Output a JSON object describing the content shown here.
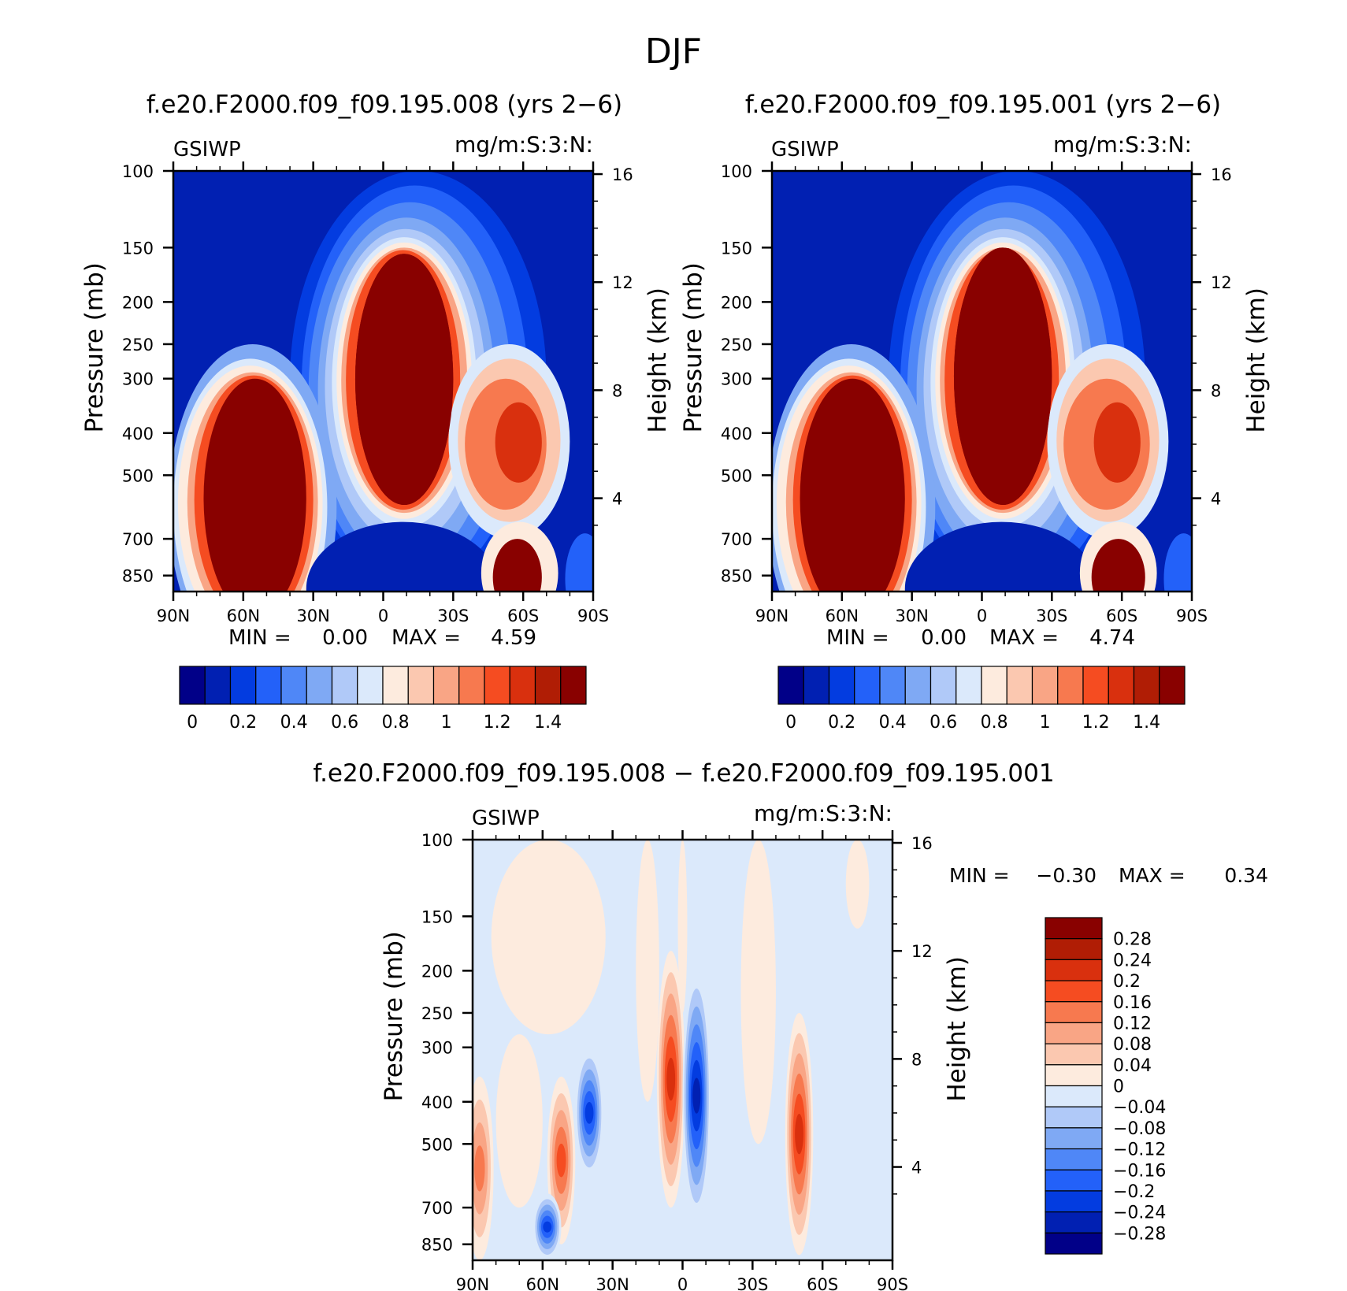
{
  "figure": {
    "title": "DJF"
  },
  "colors": {
    "abs_levels": [
      "#010088",
      "#0120b2",
      "#033ce0",
      "#2361f9",
      "#4f87f7",
      "#7fa9f4",
      "#b0c9f8",
      "#dbe9fb",
      "#fdebde",
      "#fbc8b0",
      "#f9a585",
      "#f7794f",
      "#f54c21",
      "#d9300e",
      "#b01d05",
      "#890100"
    ],
    "diff_levels": [
      "#010088",
      "#0120b2",
      "#033ce0",
      "#2361f9",
      "#4f87f7",
      "#7fa9f4",
      "#b0c9f8",
      "#dbe9fb",
      "#fdebde",
      "#fbc8b0",
      "#f9a585",
      "#f7794f",
      "#f54c21",
      "#d9300e",
      "#b01d05",
      "#890100"
    ]
  },
  "panels": [
    {
      "id": "top-left",
      "title": "f.e20.F2000.f09_f09.195.008 (yrs 2−6)",
      "left_string": "GSIWP",
      "right_string": "mg/m:S:3:N:",
      "min_label": "MIN =",
      "min_value": "0.00",
      "max_label": "MAX =",
      "max_value": "4.59",
      "lblbar_ticks": [
        "0",
        "0.2",
        "0.4",
        "0.6",
        "0.8",
        "1",
        "1.2",
        "1.4"
      ]
    },
    {
      "id": "top-right",
      "title": "f.e20.F2000.f09_f09.195.001 (yrs 2−6)",
      "left_string": "GSIWP",
      "right_string": "mg/m:S:3:N:",
      "min_label": "MIN =",
      "min_value": "0.00",
      "max_label": "MAX =",
      "max_value": "4.74",
      "lblbar_ticks": [
        "0",
        "0.2",
        "0.4",
        "0.6",
        "0.8",
        "1",
        "1.2",
        "1.4"
      ]
    },
    {
      "id": "bottom",
      "title": "f.e20.F2000.f09_f09.195.008 − f.e20.F2000.f09_f09.195.001",
      "left_string": "GSIWP",
      "right_string": "mg/m:S:3:N:",
      "min_label": "MIN =",
      "min_value": "−0.30",
      "max_label": "MAX =",
      "max_value": "0.34",
      "lblbar_ticks": [
        "0.28",
        "0.24",
        "0.2",
        "0.16",
        "0.12",
        "0.08",
        "0.04",
        "0",
        "−0.04",
        "−0.08",
        "−0.12",
        "−0.16",
        "−0.2",
        "−0.24",
        "−0.28"
      ]
    }
  ],
  "axes": {
    "ylabel": "Pressure (mb)",
    "y2label": "Height (km)",
    "pressure_ticks": [
      "100",
      "150",
      "200",
      "250",
      "300",
      "400",
      "500",
      "700",
      "850"
    ],
    "height_ticks": [
      "16",
      "12",
      "8",
      "4"
    ],
    "lat_ticks": [
      "90N",
      "60N",
      "30N",
      "0",
      "30S",
      "60S",
      "90S"
    ]
  },
  "chart_data": [
    {
      "type": "heatmap",
      "title": "f.e20.F2000.f09_f09.195.008 (yrs 2−6)",
      "variable": "GSIWP",
      "units": "mg/m:S:3:N:",
      "x_ticks": [
        "90N",
        "60N",
        "30N",
        "0",
        "30S",
        "60S",
        "90S"
      ],
      "y_ticks_pressure": [
        100,
        150,
        200,
        250,
        300,
        400,
        500,
        700,
        850
      ],
      "y2_ticks_height_km": [
        16,
        12,
        8,
        4
      ],
      "xlim": [
        90,
        -90
      ],
      "ylim": [
        100,
        925
      ],
      "y_scale": "log",
      "min": 0.0,
      "max": 4.59,
      "contour_levels": [
        0.1,
        0.2,
        0.3,
        0.4,
        0.5,
        0.6,
        0.7,
        0.8,
        0.9,
        1.0,
        1.1,
        1.2,
        1.3,
        1.4,
        1.5
      ],
      "features": [
        {
          "desc": "NH midlatitude maximum",
          "lat_range": [
            77,
            33
          ],
          "p_range": [
            300,
            925
          ],
          "value_gt": 1.5
        },
        {
          "desc": "tropical maximum",
          "lat_range": [
            12,
            -30
          ],
          "p_range": [
            155,
            585
          ],
          "value_gt": 1.5
        },
        {
          "desc": "SH low-level maximum",
          "lat_range": [
            -47,
            -68
          ],
          "p_range": [
            700,
            925
          ],
          "value_gt": 1.5
        },
        {
          "desc": "SH midlatitude band",
          "lat_range": [
            -35,
            -70
          ],
          "p_range": [
            300,
            600
          ],
          "value_approx": 1.2
        }
      ]
    },
    {
      "type": "heatmap",
      "title": "f.e20.F2000.f09_f09.195.001 (yrs 2−6)",
      "variable": "GSIWP",
      "units": "mg/m:S:3:N:",
      "x_ticks": [
        "90N",
        "60N",
        "30N",
        "0",
        "30S",
        "60S",
        "90S"
      ],
      "y_ticks_pressure": [
        100,
        150,
        200,
        250,
        300,
        400,
        500,
        700,
        850
      ],
      "y2_ticks_height_km": [
        16,
        12,
        8,
        4
      ],
      "xlim": [
        90,
        -90
      ],
      "ylim": [
        100,
        925
      ],
      "y_scale": "log",
      "min": 0.0,
      "max": 4.74,
      "contour_levels": [
        0.1,
        0.2,
        0.3,
        0.4,
        0.5,
        0.6,
        0.7,
        0.8,
        0.9,
        1.0,
        1.1,
        1.2,
        1.3,
        1.4,
        1.5
      ],
      "features": [
        {
          "desc": "NH midlatitude maximum",
          "lat_range": [
            78,
            33
          ],
          "p_range": [
            300,
            925
          ],
          "value_gt": 1.5
        },
        {
          "desc": "tropical maximum",
          "lat_range": [
            12,
            -30
          ],
          "p_range": [
            150,
            585
          ],
          "value_gt": 1.5
        },
        {
          "desc": "SH low-level maximum",
          "lat_range": [
            -47,
            -70
          ],
          "p_range": [
            700,
            925
          ],
          "value_gt": 1.5
        },
        {
          "desc": "SH midlatitude band",
          "lat_range": [
            -35,
            -72
          ],
          "p_range": [
            300,
            600
          ],
          "value_approx": 1.2
        }
      ]
    },
    {
      "type": "heatmap",
      "title": "f.e20.F2000.f09_f09.195.008 − f.e20.F2000.f09_f09.195.001",
      "variable": "GSIWP",
      "units": "mg/m:S:3:N:",
      "x_ticks": [
        "90N",
        "60N",
        "30N",
        "0",
        "30S",
        "60S",
        "90S"
      ],
      "y_ticks_pressure": [
        100,
        150,
        200,
        250,
        300,
        400,
        500,
        700,
        850
      ],
      "y2_ticks_height_km": [
        16,
        12,
        8,
        4
      ],
      "xlim": [
        90,
        -90
      ],
      "ylim": [
        100,
        925
      ],
      "y_scale": "log",
      "min": -0.3,
      "max": 0.34,
      "contour_levels": [
        -0.28,
        -0.24,
        -0.2,
        -0.16,
        -0.12,
        -0.08,
        -0.04,
        0,
        0.04,
        0.08,
        0.12,
        0.16,
        0.2,
        0.24,
        0.28
      ],
      "features": [
        {
          "desc": "positive dipole near 5N",
          "lat_center": 5,
          "p_range": [
            180,
            700
          ],
          "value_approx": 0.2
        },
        {
          "desc": "negative dipole near 5S",
          "lat_center": -6,
          "p_range": [
            200,
            750
          ],
          "value_approx": -0.24
        },
        {
          "desc": "negative near 40N",
          "lat_center": 40,
          "p_range": [
            300,
            600
          ],
          "value_approx": -0.2
        },
        {
          "desc": "positive near 50N",
          "lat_center": 52,
          "p_range": [
            350,
            850
          ],
          "value_approx": 0.16
        },
        {
          "desc": "positive near 50S",
          "lat_center": -50,
          "p_range": [
            250,
            900
          ],
          "value_approx": 0.2
        },
        {
          "desc": "positive near 88N",
          "lat_center": 87,
          "p_range": [
            350,
            925
          ],
          "value_approx": 0.12
        },
        {
          "desc": "negative near 60N low-level",
          "lat_center": 58,
          "p_range": [
            650,
            925
          ],
          "value_approx": -0.2
        }
      ]
    }
  ]
}
